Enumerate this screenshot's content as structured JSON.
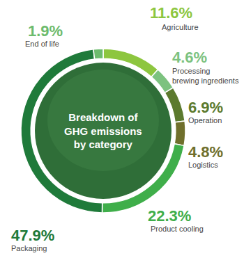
{
  "chart_data": {
    "type": "pie",
    "title": "Breakdown of GHG emissions by category",
    "categories": [
      "Agriculture",
      "Processing brewing ingredients",
      "Operation",
      "Logistics",
      "Product cooling",
      "Packaging",
      "End of life"
    ],
    "values": [
      11.6,
      4.6,
      6.9,
      4.8,
      22.3,
      47.9,
      1.9
    ],
    "value_labels": [
      "11.6%",
      "4.6%",
      "6.9%",
      "4.8%",
      "22.3%",
      "47.9%",
      "1.9%"
    ],
    "colors": [
      "#8dc63f",
      "#7cc27f",
      "#5c7a2e",
      "#6f6f2c",
      "#3fae4a",
      "#1f7a3a",
      "#6dbb6d"
    ],
    "data_labels": true
  }
}
